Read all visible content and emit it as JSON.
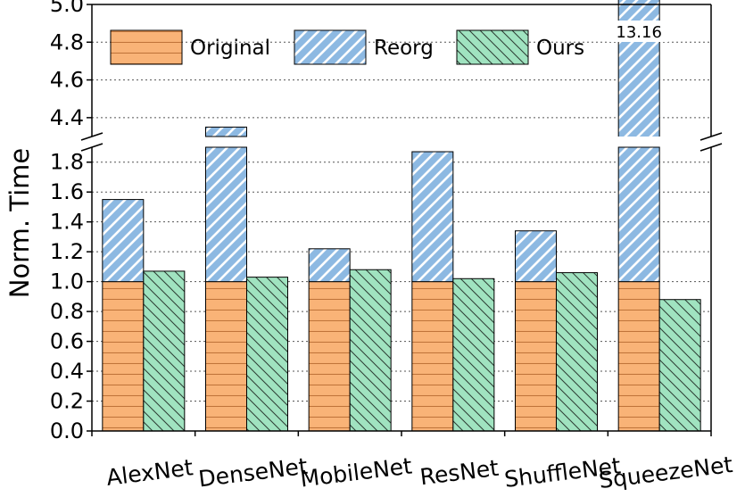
{
  "chart_data": {
    "type": "bar",
    "categories": [
      "AlexNet",
      "DenseNet",
      "MobileNet",
      "ResNet",
      "ShuffleNet",
      "SqueezeNet"
    ],
    "series": [
      {
        "name": "Original",
        "values": [
          1.0,
          1.0,
          1.0,
          1.0,
          1.0,
          1.0
        ]
      },
      {
        "name": "Reorg",
        "values": [
          1.55,
          4.35,
          1.22,
          1.87,
          1.34,
          13.16
        ]
      },
      {
        "name": "Ours",
        "values": [
          1.07,
          1.03,
          1.08,
          1.02,
          1.06,
          0.88
        ]
      }
    ],
    "stacking": "Reorg drawn above Original in the same bar; Ours drawn alongside",
    "ylabel": "Norm. Time",
    "xlabel": "",
    "title": "",
    "ylim": [
      0,
      5.0
    ],
    "axis_break": {
      "lower": [
        0,
        1.9
      ],
      "upper": [
        4.3,
        5.0
      ]
    },
    "yticks_lower": [
      "0.0",
      "0.2",
      "0.4",
      "0.6",
      "0.8",
      "1.0",
      "1.2",
      "1.4",
      "1.6",
      "1.8"
    ],
    "yticks_upper": [
      "4.4",
      "4.6",
      "4.8",
      "5.0"
    ],
    "annotation": "13.16",
    "legend_position": "top, inside",
    "grid": "horizontal dotted",
    "colors": {
      "Original": "#f9b377",
      "Reorg": "#8db9e2",
      "Ours": "#a0e3c0"
    }
  }
}
